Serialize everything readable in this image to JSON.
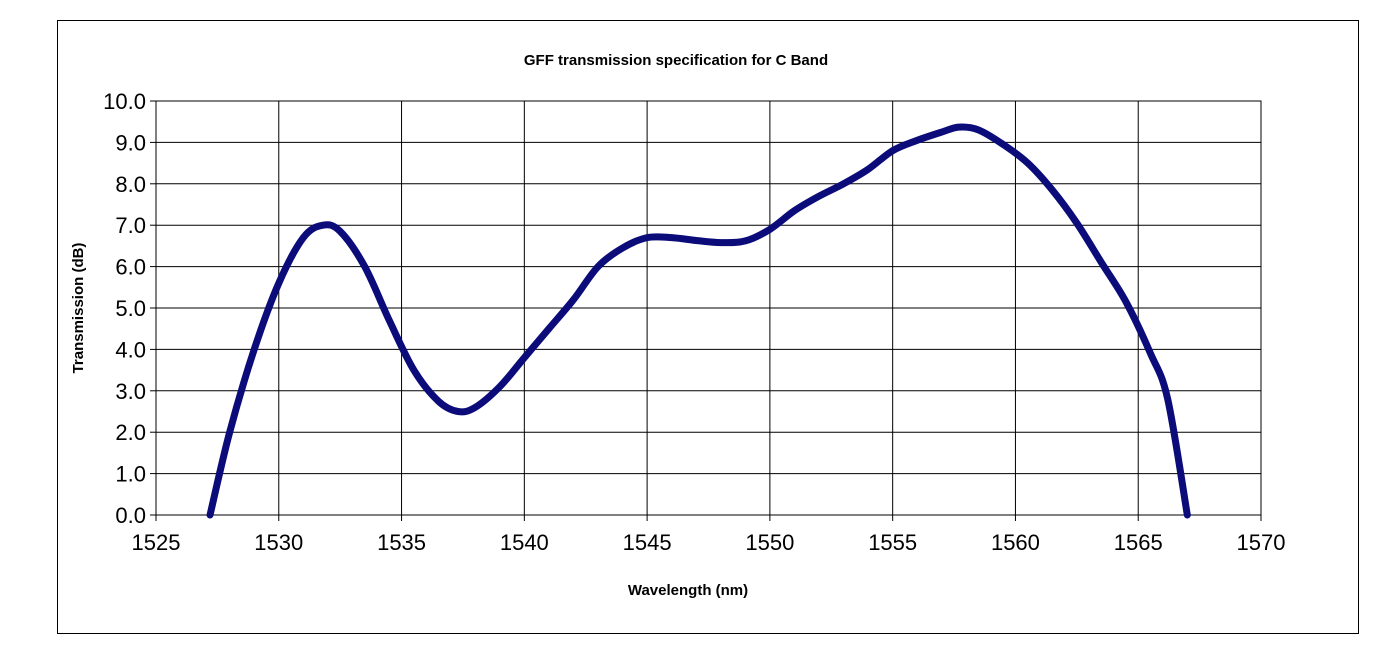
{
  "chart_data": {
    "type": "line",
    "title": "GFF transmission specification for C Band",
    "xlabel": "Wavelength (nm)",
    "ylabel": "Transmission (dB)",
    "xlim": [
      1525,
      1570
    ],
    "ylim": [
      0,
      10
    ],
    "x_ticks": [
      1525,
      1530,
      1535,
      1540,
      1545,
      1550,
      1555,
      1560,
      1565,
      1570
    ],
    "x_tick_labels": [
      "1525",
      "1530",
      "1535",
      "1540",
      "1545",
      "1550",
      "1555",
      "1560",
      "1565",
      "1570"
    ],
    "y_ticks": [
      0,
      1,
      2,
      3,
      4,
      5,
      6,
      7,
      8,
      9,
      10
    ],
    "y_tick_labels": [
      "0.0",
      "1.0",
      "2.0",
      "3.0",
      "4.0",
      "5.0",
      "6.0",
      "7.0",
      "8.0",
      "9.0",
      "10.0"
    ],
    "grid": true,
    "legend": "none",
    "series": [
      {
        "name": "GFF transmission",
        "color": "#0b0b7a",
        "x": [
          1527.2,
          1528.0,
          1529.0,
          1530.0,
          1531.0,
          1531.8,
          1532.5,
          1533.5,
          1534.5,
          1535.5,
          1536.5,
          1537.3,
          1538.0,
          1539.0,
          1540.0,
          1541.0,
          1542.0,
          1543.0,
          1544.0,
          1545.0,
          1546.0,
          1547.0,
          1548.0,
          1549.0,
          1550.0,
          1551.0,
          1552.0,
          1553.0,
          1554.0,
          1555.0,
          1556.0,
          1557.0,
          1557.7,
          1558.5,
          1559.5,
          1560.5,
          1561.5,
          1562.5,
          1563.5,
          1564.5,
          1565.5,
          1566.2,
          1567.0
        ],
        "values": [
          0.0,
          2.0,
          4.0,
          5.6,
          6.7,
          7.0,
          6.85,
          6.0,
          4.7,
          3.5,
          2.75,
          2.5,
          2.6,
          3.1,
          3.8,
          4.5,
          5.2,
          6.0,
          6.45,
          6.7,
          6.7,
          6.63,
          6.58,
          6.62,
          6.9,
          7.35,
          7.7,
          8.0,
          8.35,
          8.8,
          9.05,
          9.25,
          9.37,
          9.3,
          8.95,
          8.5,
          7.85,
          7.05,
          6.1,
          5.15,
          3.9,
          2.8,
          0.0
        ]
      }
    ]
  }
}
